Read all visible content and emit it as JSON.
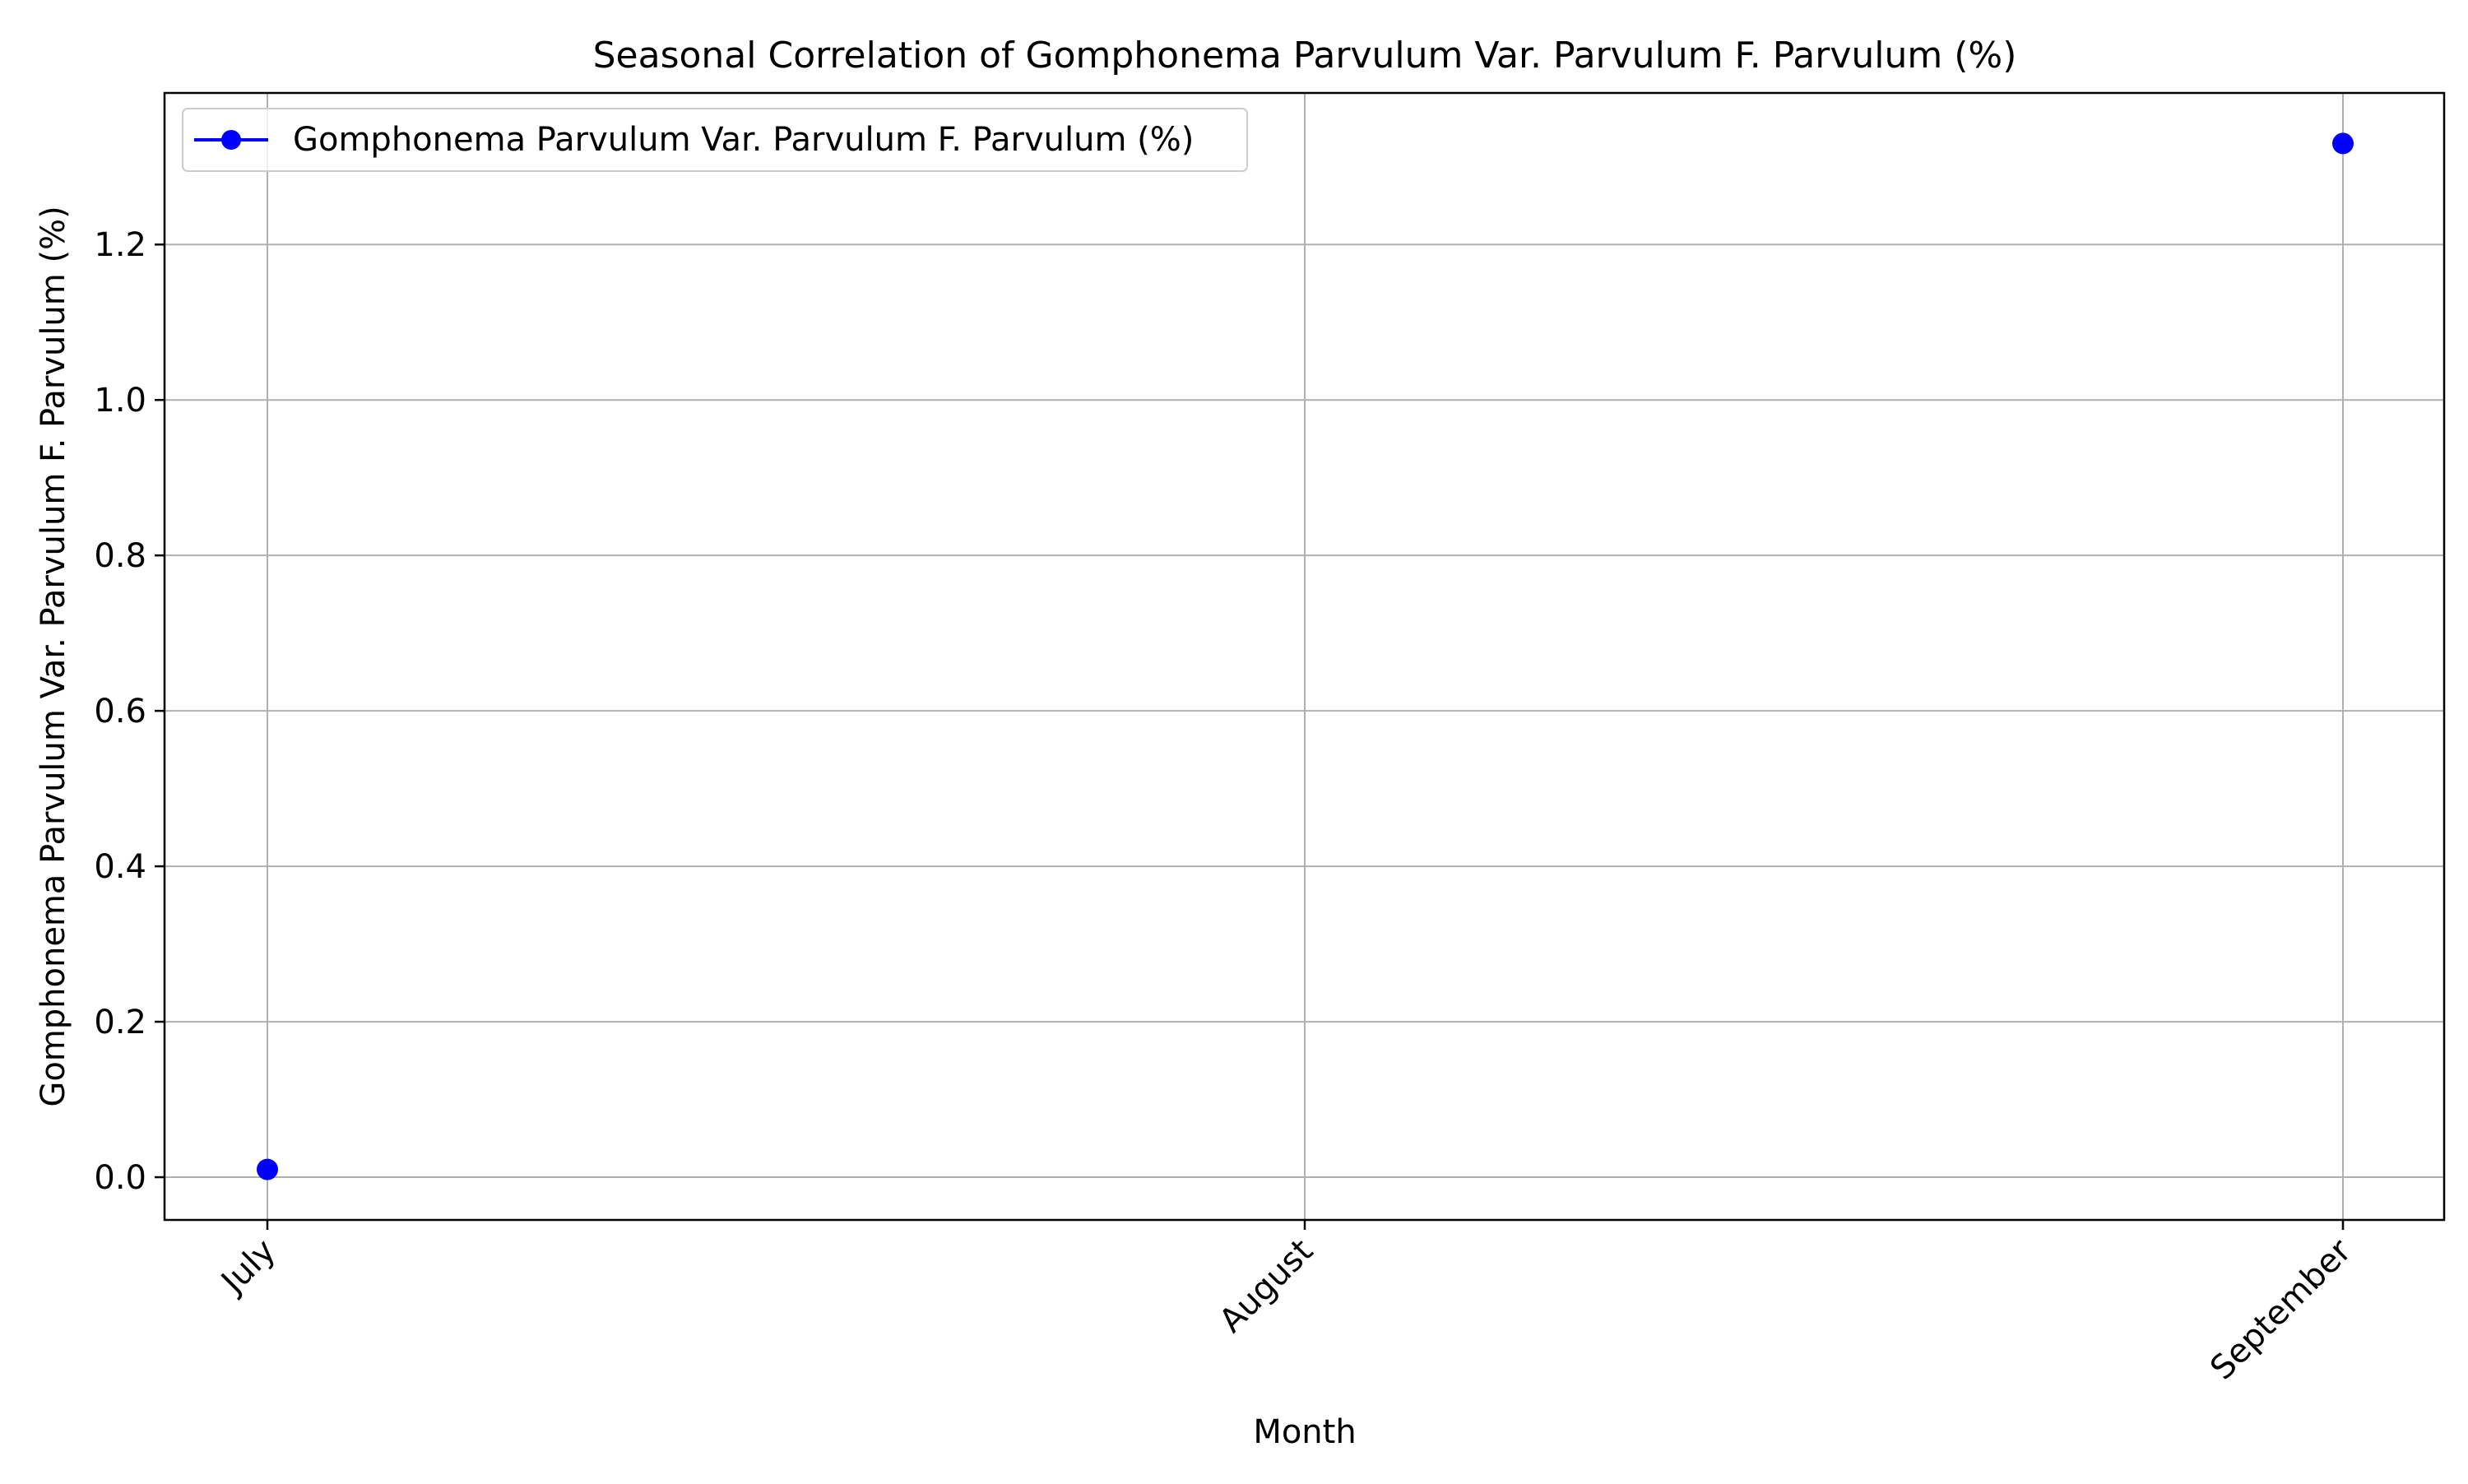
{
  "chart_data": {
    "type": "line",
    "title": "Seasonal Correlation of Gomphonema Parvulum Var. Parvulum F. Parvulum (%)",
    "xlabel": "Month",
    "ylabel": "Gomphonema Parvulum Var. Parvulum F. Parvulum (%)",
    "categories": [
      "July",
      "August",
      "September"
    ],
    "series": [
      {
        "name": "Gomphonema Parvulum Var. Parvulum F. Parvulum (%)",
        "values": [
          0.01,
          null,
          1.33
        ],
        "color": "#0000ff",
        "marker": "circle"
      }
    ],
    "ylim": [
      -0.055,
      1.395
    ],
    "yticks": [
      0.0,
      0.2,
      0.4,
      0.6,
      0.8,
      1.0,
      1.2
    ],
    "ytick_labels": [
      "0.0",
      "0.2",
      "0.4",
      "0.6",
      "0.8",
      "1.0",
      "1.2"
    ],
    "xtick_rotation_deg": 45,
    "grid": true,
    "legend_position": "upper-left",
    "colors": {
      "grid": "#b0b0b0",
      "axes": "#000000",
      "series": "#0000ff"
    }
  }
}
